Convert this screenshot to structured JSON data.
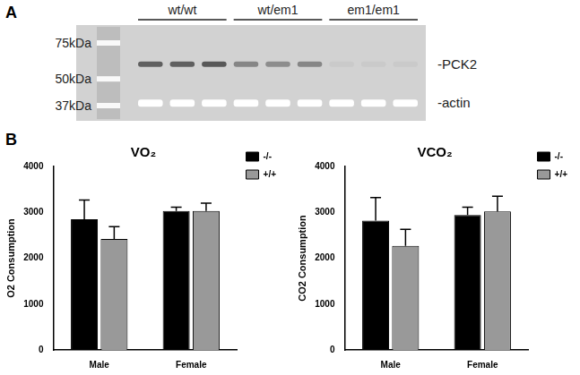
{
  "panel_labels": [
    "A",
    "B"
  ],
  "blot": {
    "ladder": [
      {
        "value": 75,
        "label": "75kDa"
      },
      {
        "value": 50,
        "label": "50kDa"
      },
      {
        "value": 37,
        "label": "37kDa"
      }
    ],
    "groups": [
      "wt/wt",
      "wt/em1",
      "em1/em1"
    ],
    "bands": [
      {
        "label": "-PCK2",
        "kda": 59,
        "intensity": [
          0.75,
          0.75,
          0.8,
          0.5,
          0.45,
          0.5,
          0.05,
          0.05,
          0.05
        ]
      },
      {
        "label": "-actin",
        "kda": 38,
        "intensity": [
          1,
          1,
          1,
          1,
          1,
          1,
          1,
          1,
          1
        ]
      }
    ]
  },
  "chart_data": [
    {
      "type": "bar",
      "title": "VO₂",
      "y_label": "O2 Consumption",
      "categories": [
        "Male",
        "Female"
      ],
      "series": [
        {
          "name": "-/-",
          "color": "#000000",
          "values": [
            2850,
            3030
          ],
          "errors": [
            420,
            80
          ]
        },
        {
          "name": "+/+",
          "color": "#999999",
          "values": [
            2420,
            3030
          ],
          "errors": [
            270,
            170
          ]
        }
      ],
      "ylim": [
        0,
        4000
      ],
      "yticks": [
        0,
        1000,
        2000,
        3000,
        4000
      ],
      "grid": false,
      "legend": "right"
    },
    {
      "type": "bar",
      "title": "VCO₂",
      "y_label": "CO2 Consumption",
      "categories": [
        "Male",
        "Female"
      ],
      "series": [
        {
          "name": "-/-",
          "color": "#000000",
          "values": [
            2820,
            2940
          ],
          "errors": [
            500,
            170
          ]
        },
        {
          "name": "+/+",
          "color": "#999999",
          "values": [
            2270,
            3020
          ],
          "errors": [
            360,
            330
          ]
        }
      ],
      "ylim": [
        0,
        4000
      ],
      "yticks": [
        0,
        1000,
        2000,
        3000,
        4000
      ],
      "grid": false,
      "legend": "right"
    }
  ]
}
